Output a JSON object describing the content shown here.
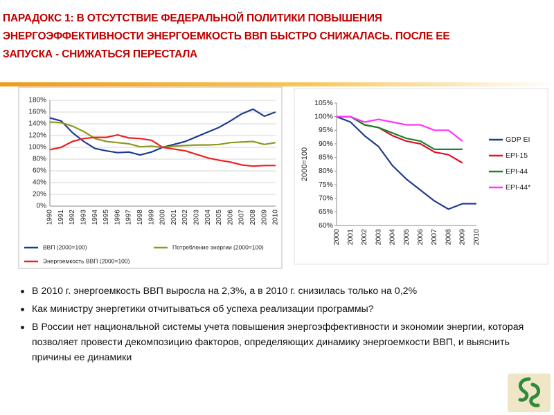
{
  "slide": {
    "title": [
      "ПАРАДОКС 1:  В ОТСУТСТВИЕ ФЕДЕРАЛЬНОЙ ПОЛИТИКИ ПОВЫШЕНИЯ",
      "ЭНЕРГОЭФФЕКТИВНОСТИ ЭНЕРГОЕМКОСТЬ ВВП БЫСТРО СНИЖАЛАСЬ. ПОСЛЕ ЕЕ",
      "ЗАПУСКА - СНИЖАТЬСЯ ПЕРЕСТАЛА"
    ],
    "bullets": [
      "В 2010 г. энергоемкость ВВП выросла на 2,3%, а в 2010 г. снизилась только на 0,2%",
      "Как министру энергетики отчитываться об успеха реализации программы?",
      "В России нет национальной системы учета повышения энергоэффективности и экономии энергии, которая позволяет провести декомпозицию факторов, определяющих динамику энергоемкости ВВП, и выяснить причины ее динамики"
    ]
  },
  "chart_data": [
    {
      "type": "line",
      "categories": [
        "1990",
        "1991",
        "1992",
        "1993",
        "1994",
        "1995",
        "1996",
        "1997",
        "1998",
        "1999",
        "2000",
        "2001",
        "2002",
        "2003",
        "2004",
        "2005",
        "2006",
        "2007",
        "2008",
        "2009",
        "2010"
      ],
      "ylim": [
        0,
        180
      ],
      "yticks": [
        {
          "value": 0,
          "label": "0%"
        },
        {
          "value": 20,
          "label": "20%"
        },
        {
          "value": 40,
          "label": "40%"
        },
        {
          "value": 60,
          "label": "60%"
        },
        {
          "value": 80,
          "label": "80%"
        },
        {
          "value": 100,
          "label": "100%"
        },
        {
          "value": 120,
          "label": "120%"
        },
        {
          "value": 140,
          "label": "140%"
        },
        {
          "value": 160,
          "label": "160%"
        },
        {
          "value": 180,
          "label": "180%"
        }
      ],
      "grid": true,
      "legend": "bottom",
      "series": [
        {
          "name": "ВВП (2000=100)",
          "color": "#1f3a93",
          "values": [
            150,
            145,
            125,
            110,
            98,
            94,
            91,
            92,
            87,
            92,
            100,
            105,
            110,
            118,
            126,
            134,
            145,
            157,
            165,
            153,
            160
          ]
        },
        {
          "name": "Потребление энергии (2000=100)",
          "color": "#8c9a1e",
          "values": [
            143,
            142,
            136,
            127,
            115,
            110,
            108,
            106,
            101,
            102,
            100,
            102,
            103,
            104,
            104,
            105,
            108,
            109,
            110,
            105,
            108
          ]
        },
        {
          "name": "Энергоемкость ВВП (2000=100)",
          "color": "#ee2020",
          "values": [
            96,
            100,
            110,
            115,
            117,
            117,
            121,
            116,
            115,
            112,
            100,
            97,
            94,
            88,
            82,
            78,
            75,
            70,
            68,
            69,
            69
          ]
        }
      ]
    },
    {
      "type": "line",
      "categories": [
        "2000",
        "2001",
        "2002",
        "2003",
        "2004",
        "2005",
        "2006",
        "2007",
        "2008",
        "2009",
        "2010"
      ],
      "y_label": "2000=100",
      "ylim": [
        60,
        105
      ],
      "yticks": [
        {
          "value": 60,
          "label": "60%"
        },
        {
          "value": 65,
          "label": "65%"
        },
        {
          "value": 70,
          "label": "70%"
        },
        {
          "value": 75,
          "label": "75%"
        },
        {
          "value": 80,
          "label": "80%"
        },
        {
          "value": 85,
          "label": "85%"
        },
        {
          "value": 90,
          "label": "90%"
        },
        {
          "value": 95,
          "label": "95%"
        },
        {
          "value": 100,
          "label": "100%"
        },
        {
          "value": 105,
          "label": "105%"
        }
      ],
      "grid": false,
      "legend": "right",
      "series": [
        {
          "name": "GDP EI",
          "color": "#1f3a93",
          "values": [
            100,
            98,
            93,
            89,
            82,
            77,
            73,
            69,
            66,
            68,
            68
          ]
        },
        {
          "name": "EPI-15",
          "color": "#e0102a",
          "values": [
            100,
            100,
            97,
            96,
            93,
            91,
            90,
            87,
            86,
            83,
            null
          ]
        },
        {
          "name": "EPI-44",
          "color": "#12852a",
          "values": [
            100,
            100,
            97,
            96,
            94,
            92,
            91,
            88,
            88,
            88,
            null
          ]
        },
        {
          "name": "EPI-44*",
          "color": "#ff33ff",
          "values": [
            100,
            100,
            98,
            99,
            98,
            97,
            97,
            95,
            95,
            91,
            null
          ]
        }
      ]
    }
  ]
}
